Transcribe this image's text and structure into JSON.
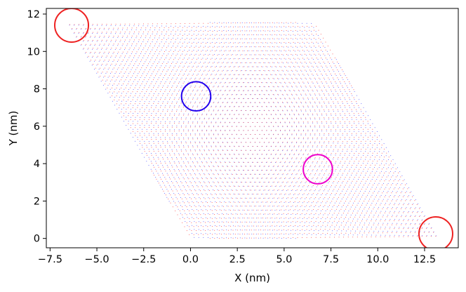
{
  "chart_data": {
    "type": "scatter",
    "title": "",
    "xlabel": "X (nm)",
    "ylabel": "Y (nm)",
    "xlim": [
      -7.7,
      14.3
    ],
    "ylim": [
      -0.5,
      12.3
    ],
    "xticks": [
      -7.5,
      -5.0,
      -2.5,
      0.0,
      2.5,
      5.0,
      7.5,
      10.0,
      12.5
    ],
    "xtick_labels": [
      "−7.5",
      "−5.0",
      "−2.5",
      "0.0",
      "2.5",
      "5.0",
      "7.5",
      "10.0",
      "12.5"
    ],
    "yticks": [
      0,
      2,
      4,
      6,
      8,
      10,
      12
    ],
    "ytick_labels": [
      "0",
      "2",
      "4",
      "6",
      "8",
      "10",
      "12"
    ],
    "grid": false,
    "lattice": {
      "description": "Two slightly rotated triangular lattices (moire) filling a parallelogram",
      "corners": [
        [
          0.0,
          0.0
        ],
        [
          13.3,
          0.0
        ],
        [
          6.65,
          11.55
        ],
        [
          -6.65,
          11.55
        ]
      ],
      "lattice_constant": 0.246,
      "twist_angle_deg": 1.08,
      "series": [
        {
          "color": "#3333ff"
        },
        {
          "color": "#ff2222"
        }
      ]
    },
    "circles": [
      {
        "cx": -6.35,
        "cy": 11.4,
        "r": 0.9,
        "color": "#ee2222"
      },
      {
        "cx": 13.1,
        "cy": 0.25,
        "r": 0.9,
        "color": "#ee2222"
      },
      {
        "cx": 0.3,
        "cy": 7.6,
        "r": 0.78,
        "color": "#2200ee"
      },
      {
        "cx": 6.8,
        "cy": 3.7,
        "r": 0.78,
        "color": "#ee00cc"
      }
    ]
  }
}
